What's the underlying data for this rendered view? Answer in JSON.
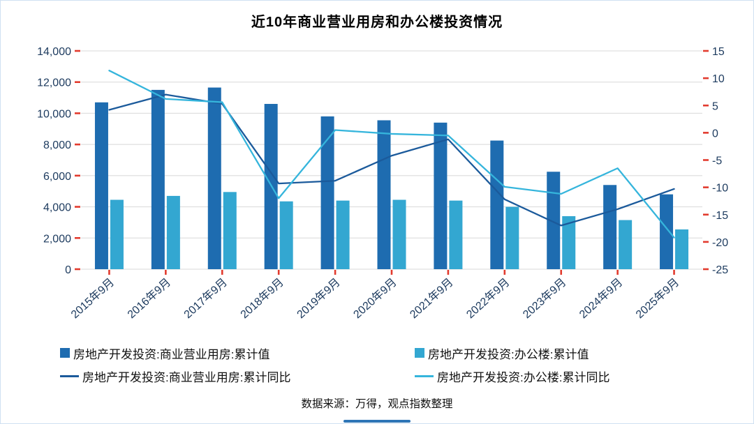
{
  "page": {
    "source_note": "数据来源：万得，观点指数整理"
  },
  "colors": {
    "bar_commercial": "#1e6cb0",
    "bar_office": "#33a7d1",
    "line_commercial": "#1b5a9b",
    "line_office": "#35b5dc",
    "axis_text": "#1c3a5e",
    "tick": "#e23b2e",
    "gridline": "#d8d8d8",
    "border": "#cfe0f2",
    "accent_rule": "#2e75b6"
  },
  "chart_data": {
    "type": "combo-bar-line",
    "title": "近10年商业营业用房和办公楼投资情况",
    "grid": "horizontal",
    "legend_position": "bottom",
    "categories": [
      "2015年9月",
      "2016年9月",
      "2017年9月",
      "2018年9月",
      "2019年9月",
      "2020年9月",
      "2021年9月",
      "2022年9月",
      "2023年9月",
      "2024年9月",
      "2025年9月"
    ],
    "left_axis": {
      "min": 0,
      "max": 14000,
      "step": 2000,
      "ticks": [
        0,
        2000,
        4000,
        6000,
        8000,
        10000,
        12000,
        14000
      ],
      "tick_labels": [
        "0",
        "2,000",
        "4,000",
        "6,000",
        "8,000",
        "10,000",
        "12,000",
        "14,000"
      ]
    },
    "right_axis": {
      "min": -25,
      "max": 15,
      "step": 5,
      "ticks": [
        -25,
        -20,
        -15,
        -10,
        -5,
        0,
        5,
        10,
        15
      ],
      "tick_labels": [
        "-25",
        "-20",
        "-15",
        "-10",
        "-5",
        "0",
        "5",
        "10",
        "15"
      ]
    },
    "series": [
      {
        "key": "commercial_value",
        "name": "房地产开发投资:商业营业用房:累计值",
        "type": "bar",
        "axis": "left",
        "color_key": "bar_commercial",
        "values": [
          10700,
          11500,
          11650,
          10600,
          9800,
          9550,
          9400,
          8250,
          6250,
          5400,
          4800
        ]
      },
      {
        "key": "office_value",
        "name": "房地产开发投资:办公楼:累计值",
        "type": "bar",
        "axis": "left",
        "color_key": "bar_office",
        "values": [
          4450,
          4700,
          4950,
          4350,
          4400,
          4450,
          4400,
          4000,
          3400,
          3150,
          2550
        ]
      },
      {
        "key": "commercial_yoy",
        "name": "房地产开发投资:商业营业用房:累计同比",
        "type": "line",
        "axis": "right",
        "color_key": "line_commercial",
        "values": [
          4.2,
          7.0,
          5.3,
          -9.3,
          -8.8,
          -4.2,
          -1.2,
          -12.2,
          -17.0,
          -14.0,
          -10.3
        ]
      },
      {
        "key": "office_yoy",
        "name": "房地产开发投资:办公楼:累计同比",
        "type": "line",
        "axis": "right",
        "color_key": "line_office",
        "values": [
          11.4,
          6.2,
          5.6,
          -12.0,
          0.5,
          -0.2,
          -0.5,
          -9.9,
          -11.2,
          -6.5,
          -19.2
        ]
      }
    ]
  }
}
